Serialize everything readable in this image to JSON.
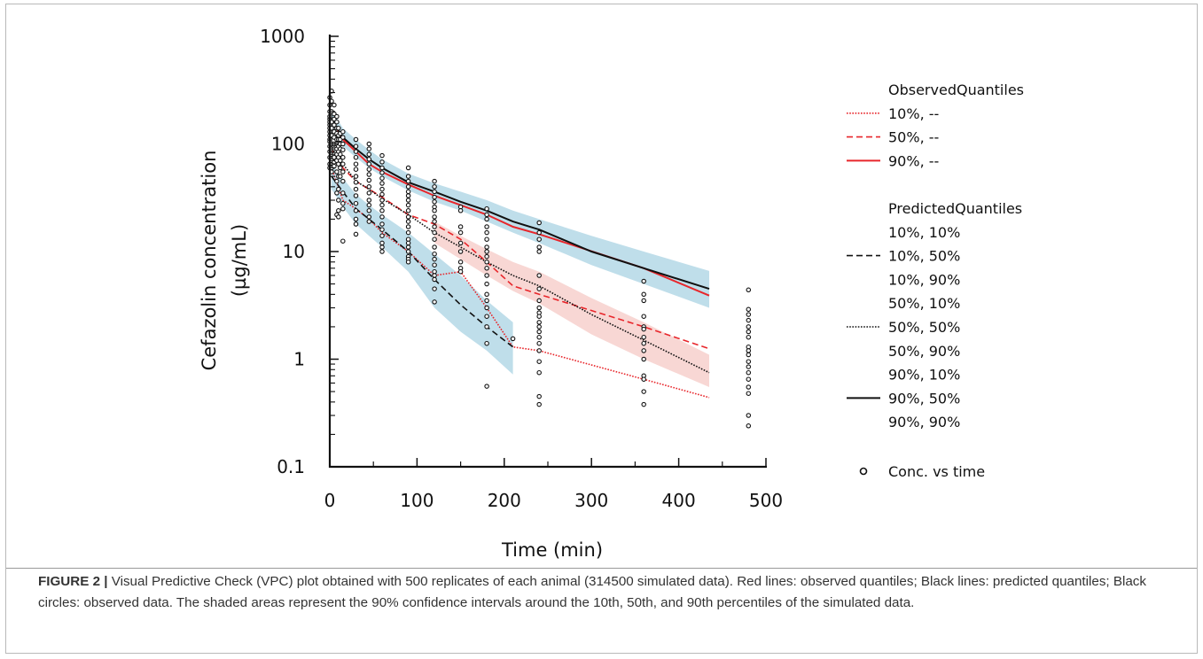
{
  "chart_data": {
    "type": "scatter",
    "xlabel": "Time (min)",
    "ylabel_lines": [
      "Cefazolin concentration",
      "(µg/mL)"
    ],
    "xlim": [
      0,
      500
    ],
    "ylim": [
      0.1,
      1000
    ],
    "yscale": "log",
    "x_ticks": [
      0,
      100,
      200,
      300,
      400,
      500
    ],
    "y_ticks": [
      {
        "value": 0.1,
        "label": "0.1"
      },
      {
        "value": 1,
        "label": "1"
      },
      {
        "value": 10,
        "label": "10"
      },
      {
        "value": 100,
        "label": "100"
      },
      {
        "value": 1000,
        "label": "1000"
      }
    ],
    "legend_position": "right",
    "legend": {
      "observed_title": "ObservedQuantiles",
      "observed": [
        {
          "label": "10%, --",
          "color": "#e8262b",
          "style": "dotted"
        },
        {
          "label": "50%, --",
          "color": "#e8262b",
          "style": "dashed"
        },
        {
          "label": "90%, --",
          "color": "#e8262b",
          "style": "solid"
        }
      ],
      "predicted_title": "PredictedQuantiles",
      "predicted": [
        {
          "label": "10%, 10%",
          "style": "none"
        },
        {
          "label": "10%, 50%",
          "style": "dashed"
        },
        {
          "label": "10%, 90%",
          "style": "none"
        },
        {
          "label": "50%, 10%",
          "style": "none"
        },
        {
          "label": "50%, 50%",
          "style": "dotted"
        },
        {
          "label": "50%, 90%",
          "style": "none"
        },
        {
          "label": "90%, 10%",
          "style": "none"
        },
        {
          "label": "90%, 50%",
          "style": "solid"
        },
        {
          "label": "90%, 90%",
          "style": "none"
        }
      ],
      "points_label": "Conc. vs time"
    },
    "colors": {
      "observed": "#e8262b",
      "predicted": "#111111",
      "band_blue": "#a9d3e3",
      "band_pink": "#f6c9c6"
    },
    "series": [
      {
        "name": "ObservedQuantiles 10%",
        "style": "dotted",
        "color": "#e8262b",
        "x": [
          2,
          15,
          30,
          45,
          60,
          90,
          120,
          150,
          180,
          210,
          240,
          360,
          435
        ],
        "y": [
          60,
          30,
          25,
          20,
          15,
          10,
          6,
          6.5,
          3,
          1.3,
          1.2,
          0.65,
          0.44
        ]
      },
      {
        "name": "ObservedQuantiles 50%",
        "style": "dashed",
        "color": "#e8262b",
        "x": [
          2,
          15,
          30,
          45,
          60,
          90,
          120,
          150,
          180,
          210,
          240,
          360,
          435
        ],
        "y": [
          90,
          60,
          45,
          38,
          32,
          22,
          18,
          13,
          8,
          4.8,
          4,
          2,
          1.25
        ]
      },
      {
        "name": "ObservedQuantiles 90%",
        "style": "solid",
        "color": "#e8262b",
        "x": [
          2,
          15,
          30,
          45,
          60,
          90,
          120,
          150,
          180,
          210,
          240,
          360,
          435
        ],
        "y": [
          170,
          110,
          85,
          65,
          55,
          42,
          33,
          27,
          22,
          17,
          14.5,
          7,
          3.9
        ]
      },
      {
        "name": "PredictedQuantiles 10%, 50%",
        "style": "dashed",
        "color": "#111111",
        "x": [
          2,
          15,
          30,
          45,
          60,
          90,
          120,
          150,
          180,
          210
        ],
        "y": [
          50,
          36,
          25,
          20,
          16,
          10,
          5.5,
          3.2,
          2,
          1.3
        ]
      },
      {
        "name": "PredictedQuantiles 50%, 50%",
        "style": "dotted",
        "color": "#111111",
        "x": [
          2,
          15,
          30,
          45,
          60,
          90,
          120,
          150,
          180,
          210,
          240,
          300,
          360,
          435
        ],
        "y": [
          90,
          65,
          45,
          38,
          31,
          22,
          15,
          11,
          8,
          6,
          4.8,
          2.6,
          1.5,
          0.75
        ]
      },
      {
        "name": "PredictedQuantiles 90%, 50%",
        "style": "solid",
        "color": "#111111",
        "x": [
          2,
          15,
          30,
          45,
          60,
          90,
          120,
          150,
          180,
          210,
          240,
          300,
          360,
          435
        ],
        "y": [
          170,
          115,
          90,
          72,
          60,
          44,
          36,
          29,
          24,
          19,
          16,
          10,
          7,
          4.5
        ]
      }
    ],
    "bands": [
      {
        "color": "#a9d3e3",
        "x": [
          2,
          15,
          30,
          45,
          60,
          90,
          120,
          150,
          180,
          210,
          240,
          300,
          360,
          435
        ],
        "lower": [
          140,
          95,
          75,
          60,
          50,
          37,
          29,
          24,
          19,
          15,
          12,
          7.5,
          5,
          3
        ],
        "upper": [
          210,
          140,
          110,
          88,
          72,
          53,
          43,
          36,
          30,
          24,
          20,
          14,
          10,
          6.6
        ]
      },
      {
        "color": "#a9d3e3",
        "x": [
          2,
          15,
          30,
          45,
          60,
          90,
          120,
          150,
          180,
          210
        ],
        "lower": [
          38,
          26,
          18,
          14,
          11,
          6.5,
          3,
          1.8,
          1.2,
          0.72
        ],
        "upper": [
          65,
          48,
          34,
          27,
          22,
          15,
          9.5,
          6,
          3.5,
          2.2
        ]
      },
      {
        "color": "#f6c9c6",
        "x": [
          120,
          150,
          180,
          210,
          240,
          300,
          360,
          435
        ],
        "lower": [
          12,
          8.5,
          6,
          4.3,
          3.3,
          1.7,
          1.0,
          0.55
        ],
        "upper": [
          19,
          14,
          10.5,
          8,
          6.5,
          3.7,
          2.2,
          1.1
        ]
      }
    ],
    "points": [
      {
        "x": 0,
        "y": [
          95,
          110,
          130,
          150,
          170,
          200,
          230,
          270,
          140,
          120,
          85,
          75,
          65,
          60,
          180,
          160,
          105
        ]
      },
      {
        "x": 2,
        "y": [
          310,
          250,
          200,
          160,
          140,
          120,
          100,
          90,
          80,
          70,
          60,
          55
        ]
      },
      {
        "x": 5,
        "y": [
          230,
          190,
          170,
          150,
          130,
          115,
          100,
          90,
          80,
          75,
          68,
          62
        ]
      },
      {
        "x": 8,
        "y": [
          180,
          160,
          140,
          125,
          110,
          100,
          90,
          80,
          70,
          55,
          45,
          35,
          22
        ]
      },
      {
        "x": 10,
        "y": [
          140,
          120,
          110,
          95,
          85,
          75,
          65,
          50,
          38,
          30,
          24,
          21
        ]
      },
      {
        "x": 12,
        "y": [
          125,
          110,
          100,
          90,
          80,
          70,
          60,
          50
        ]
      },
      {
        "x": 15,
        "y": [
          130,
          115,
          100,
          88,
          75,
          65,
          55,
          45,
          35,
          28,
          25,
          12.5
        ]
      },
      {
        "x": 30,
        "y": [
          110,
          95,
          85,
          75,
          65,
          58,
          50,
          44,
          38,
          33,
          28,
          24,
          20,
          18,
          14.5
        ]
      },
      {
        "x": 45,
        "y": [
          100,
          90,
          80,
          72,
          65,
          58,
          52,
          46,
          40,
          35,
          30,
          27,
          24,
          21,
          19
        ]
      },
      {
        "x": 60,
        "y": [
          78,
          68,
          60,
          54,
          48,
          43,
          38,
          34,
          30,
          27,
          24,
          21,
          18,
          16,
          14,
          12,
          11,
          10
        ]
      },
      {
        "x": 90,
        "y": [
          60,
          50,
          45,
          40,
          36,
          33,
          30,
          27,
          24,
          21,
          19,
          17,
          15,
          13,
          12,
          11,
          10,
          9,
          8.5,
          8
        ]
      },
      {
        "x": 120,
        "y": [
          45,
          40,
          36,
          32,
          29,
          26,
          24,
          21,
          19,
          17,
          15,
          13,
          11,
          9.5,
          8.5,
          7.5,
          6.5,
          6,
          5.5,
          4.5,
          3.4
        ]
      },
      {
        "x": 150,
        "y": [
          26,
          24,
          17,
          15,
          12,
          10,
          8,
          7,
          6.5
        ]
      },
      {
        "x": 180,
        "y": [
          25,
          22,
          20,
          17,
          15,
          13,
          11,
          10,
          9,
          8,
          7,
          6,
          5,
          4,
          3.5,
          3,
          2.5,
          2,
          1.4,
          0.56
        ]
      },
      {
        "x": 210,
        "y": [
          1.55
        ]
      },
      {
        "x": 240,
        "y": [
          18.5,
          15,
          13,
          11,
          10,
          6,
          4.5,
          3.5,
          3,
          2.7,
          2.5,
          2.2,
          2,
          1.8,
          1.6,
          1.4,
          1.2,
          0.95,
          0.75,
          0.45,
          0.38
        ]
      },
      {
        "x": 360,
        "y": [
          5.3,
          4,
          3.5,
          2.5,
          2,
          1.9,
          1.6,
          1.4,
          1.2,
          1,
          0.7,
          0.65,
          0.5,
          0.38
        ]
      },
      {
        "x": 480,
        "y": [
          4.4,
          2.9,
          2.6,
          2.3,
          2,
          1.8,
          1.6,
          1.3,
          1.2,
          1.1,
          0.95,
          0.85,
          0.75,
          0.65,
          0.55,
          0.48,
          0.3,
          0.24
        ]
      }
    ]
  },
  "caption": {
    "label": "FIGURE 2 |",
    "text": " Visual Predictive Check (VPC) plot obtained with 500 replicates of each animal (314500 simulated data). Red lines: observed quantiles; Black lines: predicted quantiles; Black circles: observed data. The shaded areas represent the 90% confidence intervals around the 10th, 50th, and 90th percentiles of the simulated data."
  }
}
